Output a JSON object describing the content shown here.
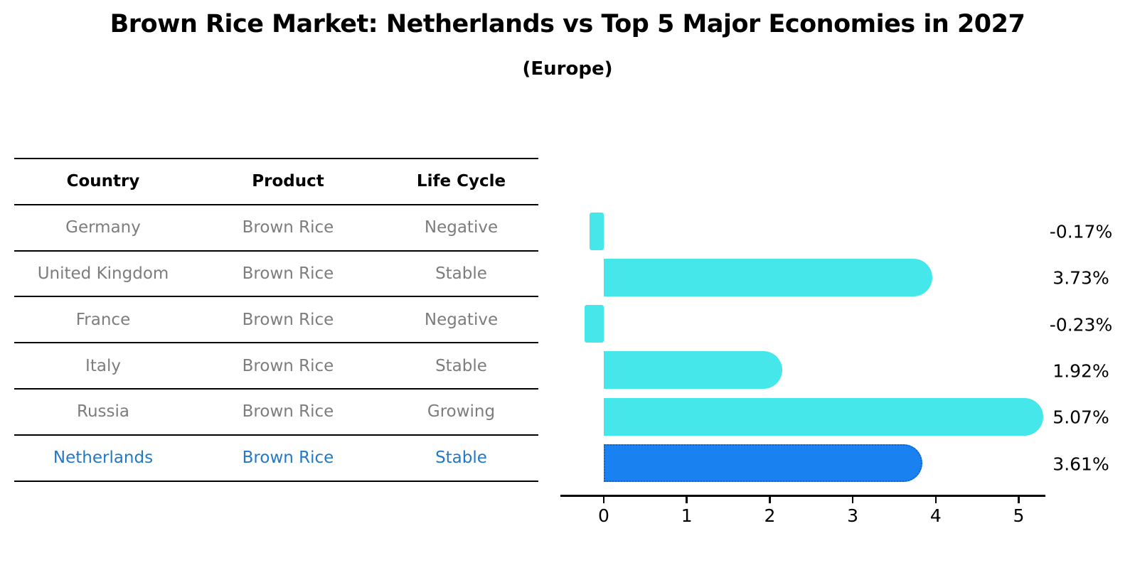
{
  "header": {
    "title": "Brown Rice Market: Netherlands vs Top 5 Major Economies in 2027",
    "subtitle": "(Europe)"
  },
  "table": {
    "columns": [
      "Country",
      "Product",
      "Life Cycle"
    ],
    "rows": [
      {
        "country": "Germany",
        "product": "Brown Rice",
        "life_cycle": "Negative",
        "highlight": false
      },
      {
        "country": "United Kingdom",
        "product": "Brown Rice",
        "life_cycle": "Stable",
        "highlight": false
      },
      {
        "country": "France",
        "product": "Brown Rice",
        "life_cycle": "Negative",
        "highlight": false
      },
      {
        "country": "Italy",
        "product": "Brown Rice",
        "life_cycle": "Stable",
        "highlight": false
      },
      {
        "country": "Russia",
        "product": "Brown Rice",
        "life_cycle": "Growing",
        "highlight": false
      },
      {
        "country": "Netherlands",
        "product": "Brown Rice",
        "life_cycle": "Stable",
        "highlight": true
      }
    ]
  },
  "chart_data": {
    "type": "bar",
    "orientation": "horizontal",
    "title": "Brown Rice Market: Netherlands vs Top 5 Major Economies in 2027 (Europe)",
    "xlabel": "",
    "ylabel": "",
    "categories": [
      "Germany",
      "United Kingdom",
      "France",
      "Italy",
      "Russia",
      "Netherlands"
    ],
    "values": [
      -0.17,
      3.73,
      -0.23,
      1.92,
      5.07,
      3.61
    ],
    "value_labels": [
      "-0.17%",
      "3.73%",
      "-0.23%",
      "1.92%",
      "5.07%",
      "3.61%"
    ],
    "x_ticks": [
      0,
      1,
      2,
      3,
      4,
      5
    ],
    "xlim": [
      -0.52,
      5.32
    ],
    "grid": false,
    "legend": false,
    "bar_color": "#46e7eb",
    "highlight_index": 5,
    "highlight_color": "#1a82f0",
    "highlight_border_color": "#0d63d8",
    "highlight_text_color": "#2478c8",
    "text_color": "#000000",
    "muted_text_color": "#7d7d7d"
  }
}
